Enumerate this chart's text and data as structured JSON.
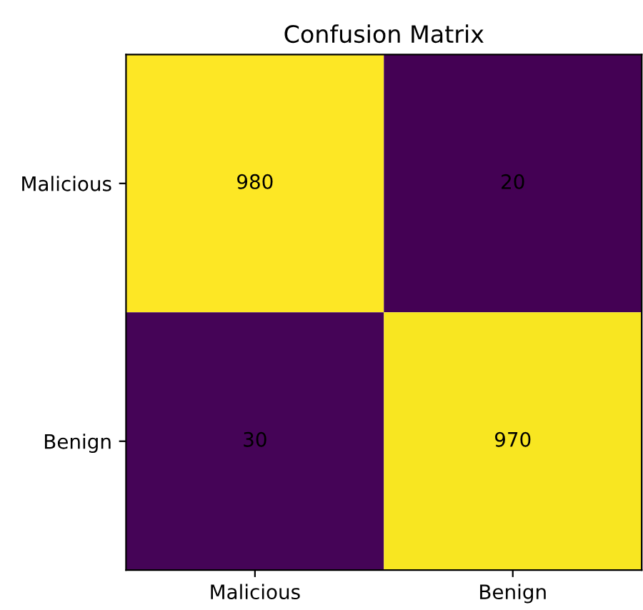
{
  "chart_data": {
    "type": "heatmap",
    "title": "Confusion Matrix",
    "categories": [
      "Malicious",
      "Benign"
    ],
    "y_categories": [
      "Malicious",
      "Benign"
    ],
    "cells": [
      [
        980,
        20
      ],
      [
        30,
        970
      ]
    ],
    "data_labels": true
  }
}
